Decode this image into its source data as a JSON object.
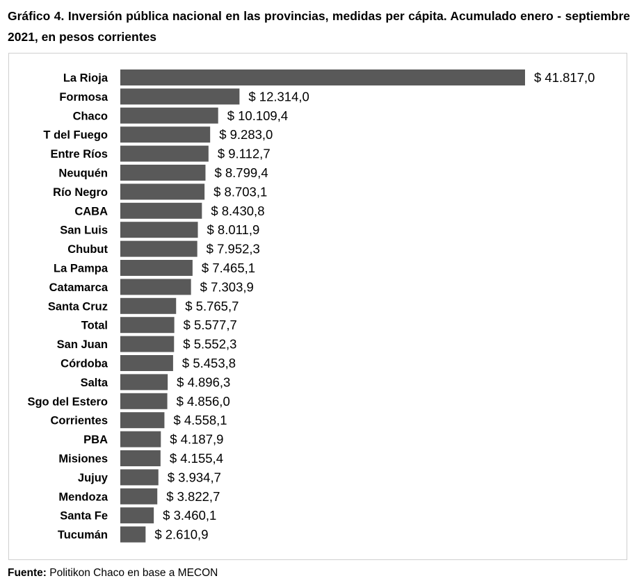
{
  "title": "Gráfico 4. Inversión pública nacional en las provincias, medidas per cápita. Acumulado enero - septiembre 2021, en pesos corrientes",
  "source": {
    "label": "Fuente:",
    "text": " Politikon Chaco en base a MECON"
  },
  "colors": {
    "bar": "#595959",
    "border": "#cfcfcf"
  },
  "chart_data": {
    "type": "bar",
    "orientation": "horizontal",
    "categories": [
      "La Rioja",
      "Formosa",
      "Chaco",
      "T del Fuego",
      "Entre Ríos",
      "Neuquén",
      "Río Negro",
      "CABA",
      "San Luis",
      "Chubut",
      "La Pampa",
      "Catamarca",
      "Santa Cruz",
      "Total",
      "San Juan",
      "Córdoba",
      "Salta",
      "Sgo del Estero",
      "Corrientes",
      "PBA",
      "Misiones",
      "Jujuy",
      "Mendoza",
      "Santa Fe",
      "Tucumán"
    ],
    "values": [
      41817.0,
      12314.0,
      10109.4,
      9283.0,
      9112.7,
      8799.4,
      8703.1,
      8430.8,
      8011.9,
      7952.3,
      7465.1,
      7303.9,
      5765.7,
      5577.7,
      5552.3,
      5453.8,
      4896.3,
      4856.0,
      4558.1,
      4187.9,
      4155.4,
      3934.7,
      3822.7,
      3460.1,
      2610.9
    ],
    "data_labels": [
      "$ 41.817,0",
      "$ 12.314,0",
      "$ 10.109,4",
      "$ 9.283,0",
      "$ 9.112,7",
      "$ 8.799,4",
      "$ 8.703,1",
      "$ 8.430,8",
      "$ 8.011,9",
      "$ 7.952,3",
      "$ 7.465,1",
      "$ 7.303,9",
      "$ 5.765,7",
      "$ 5.577,7",
      "$ 5.552,3",
      "$ 5.453,8",
      "$ 4.896,3",
      "$ 4.856,0",
      "$ 4.558,1",
      "$ 4.187,9",
      "$ 4.155,4",
      "$ 3.934,7",
      "$ 3.822,7",
      "$ 3.460,1",
      "$ 2.610,9"
    ],
    "xlim": [
      0,
      41817.0
    ],
    "grid": false,
    "legend": "none"
  }
}
